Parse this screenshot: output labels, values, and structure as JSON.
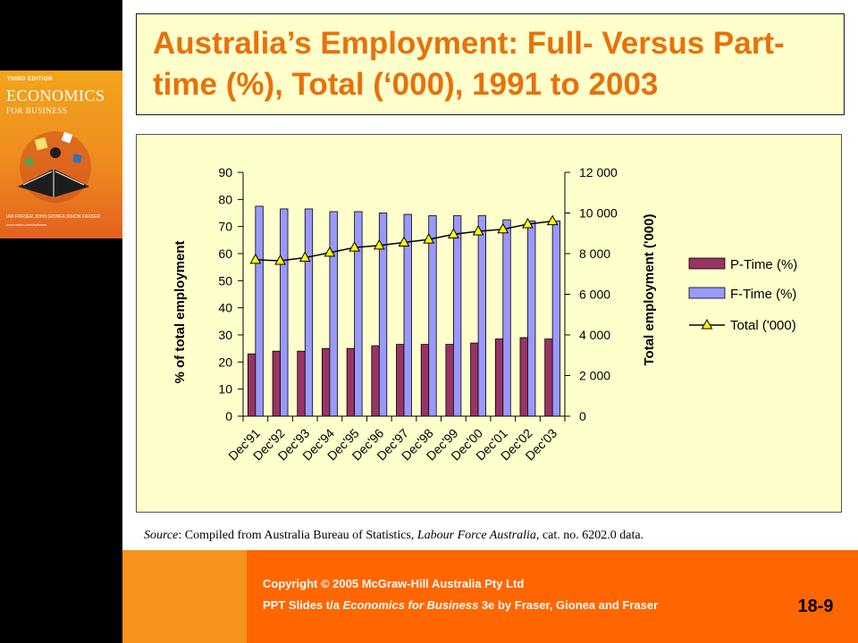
{
  "book": {
    "edition": "THIRD EDITION",
    "title_line1": "ECONOMICS",
    "title_line2": "FOR BUSINESS",
    "authors": "IAN FRASER  JOHN GIONEA  SIMON FRASER",
    "website": "www.mhhe.com/au/fraser"
  },
  "title": "Australia’s Employment: Full- Versus Part-time (%), Total (‘000), 1991 to 2003",
  "chart_data": {
    "type": "bar",
    "categories": [
      "Dec'91",
      "Dec'92",
      "Dec'93",
      "Dec'94",
      "Dec'95",
      "Dec'96",
      "Dec'97",
      "Dec'98",
      "Dec'99",
      "Dec'00",
      "Dec'01",
      "Dec'02",
      "Dec'03"
    ],
    "series": [
      {
        "name": "P-Time (%)",
        "type": "bar",
        "axis": "left",
        "color": "#993366",
        "values": [
          23,
          24,
          24,
          25,
          25,
          26,
          26.5,
          26.5,
          26.5,
          27,
          28.5,
          29,
          28.5
        ]
      },
      {
        "name": "F-Time (%)",
        "type": "bar",
        "axis": "left",
        "color": "#9999ff",
        "values": [
          77.5,
          76.5,
          76.5,
          75.5,
          75.5,
          75,
          74.5,
          74,
          74,
          74,
          72.5,
          72,
          72
        ]
      },
      {
        "name": "Total ('000)",
        "type": "line",
        "axis": "right",
        "color": "#000000",
        "marker_color": "#ffff00",
        "values": [
          7700,
          7650,
          7800,
          8050,
          8300,
          8400,
          8550,
          8700,
          8950,
          9100,
          9200,
          9450,
          9600
        ]
      }
    ],
    "ylabel": "% of total employment",
    "y2label": "Total employment ('000)",
    "ylim": [
      0,
      90
    ],
    "yticks": [
      "0",
      "10",
      "20",
      "30",
      "40",
      "50",
      "60",
      "70",
      "80",
      "90"
    ],
    "y2lim": [
      0,
      12000
    ],
    "y2ticks": [
      "0",
      "2 000",
      "4 000",
      "6 000",
      "8 000",
      "10 000",
      "12 000"
    ],
    "legend": {
      "position": "right"
    }
  },
  "source": {
    "prefix": "Source",
    "text1": ": Compiled from Australia Bureau of Statistics, ",
    "publication": "Labour Force Australia",
    "text2": ", cat. no. 6202.0 data."
  },
  "footer": {
    "line1": "Copyright © 2005 McGraw-Hill Australia Pty Ltd",
    "line2_prefix": "PPT Slides t/a ",
    "line2_book": "Economics for Business",
    "line2_suffix": " 3e by Fraser, Gionea and Fraser"
  },
  "slide_number": "18-9"
}
